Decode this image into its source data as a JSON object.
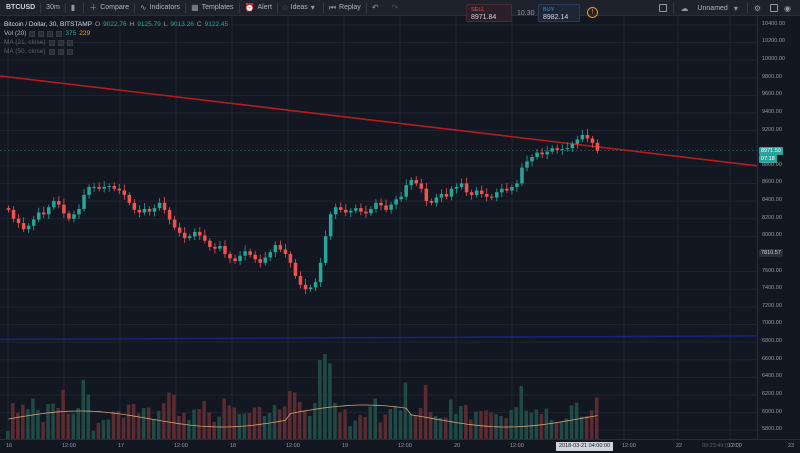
{
  "toolbar": {
    "symbol": "BTCUSD",
    "interval": "30m",
    "compare": "Compare",
    "indicators": "Indicators",
    "templates": "Templates",
    "alert": "Alert",
    "ideas": "Ideas",
    "replay": "Replay",
    "layout_name": "Unnamed"
  },
  "trade": {
    "sell_label": "SELL",
    "sell_price": "8971.84",
    "spread": "10.30",
    "buy_label": "BUY",
    "buy_price": "8982.14"
  },
  "legend": {
    "title": "Bitcoin / Dollar, 30, BITSTAMP",
    "o_label": "O",
    "o_val": "9022.76",
    "h_label": "H",
    "h_val": "9125.79",
    "l_label": "L",
    "l_val": "9013.26",
    "c_label": "C",
    "c_val": "9122.45",
    "vol_label": "Vol (20)",
    "vol_a": "375",
    "vol_b": "229",
    "ma1": "MA (21, close)",
    "ma2": "MA (50, close)"
  },
  "price_axis": {
    "labels": [
      "10400.00",
      "10200.00",
      "10000.00",
      "9800.00",
      "9600.00",
      "9400.00",
      "9200.00",
      "8800.00",
      "8600.00",
      "8400.00",
      "8200.00",
      "8000.00",
      "7600.00",
      "7400.00",
      "7200.00",
      "7000.00",
      "6800.00",
      "6600.00",
      "6400.00",
      "6200.00",
      "6000.00",
      "5800.00"
    ],
    "current_price": "8971.50",
    "countdown": "07:18",
    "crosshair_price": "7810.57"
  },
  "time_axis": {
    "labels": [
      "16",
      "12:00",
      "17",
      "12:00",
      "18",
      "12:00",
      "19",
      "12:00",
      "20",
      "12:00",
      "12:00",
      "22",
      "12:00",
      "23"
    ],
    "highlight": "2018-03-21 04:00:00",
    "status": "09:23:49 (UTC)"
  },
  "colors": {
    "background": "#131722",
    "up": "#26a69a",
    "down": "#ef5350",
    "trendline": "#b71c1c",
    "level_line": "#1a237e",
    "volume_ma": "#d4a373"
  },
  "chart_data": {
    "type": "candlestick",
    "symbol": "BTCUSD",
    "interval": "30",
    "ylim": [
      5700,
      10500
    ],
    "x_start": "2018-03-16 00:00",
    "candles_close": [
      8300,
      8200,
      8150,
      8080,
      8120,
      8190,
      8270,
      8250,
      8330,
      8400,
      8360,
      8260,
      8200,
      8250,
      8310,
      8470,
      8560,
      8560,
      8540,
      8560,
      8570,
      8540,
      8520,
      8470,
      8380,
      8300,
      8270,
      8310,
      8280,
      8320,
      8380,
      8300,
      8190,
      8100,
      8040,
      7980,
      8000,
      8050,
      8010,
      7950,
      7880,
      7860,
      7890,
      7800,
      7750,
      7720,
      7780,
      7830,
      7790,
      7740,
      7700,
      7760,
      7820,
      7900,
      7850,
      7800,
      7700,
      7550,
      7450,
      7400,
      7420,
      7480,
      7700,
      8000,
      8250,
      8330,
      8300,
      8270,
      8290,
      8320,
      8280,
      8260,
      8310,
      8380,
      8350,
      8300,
      8360,
      8420,
      8450,
      8580,
      8640,
      8600,
      8540,
      8400,
      8380,
      8440,
      8480,
      8450,
      8540,
      8560,
      8600,
      8500,
      8470,
      8520,
      8480,
      8450,
      8440,
      8500,
      8540,
      8520,
      8560,
      8600,
      8780,
      8850,
      8900,
      8950,
      8930,
      8960,
      9000,
      8980,
      8990,
      9000,
      9050,
      9100,
      9150,
      9110,
      9060,
      8970
    ]
  }
}
